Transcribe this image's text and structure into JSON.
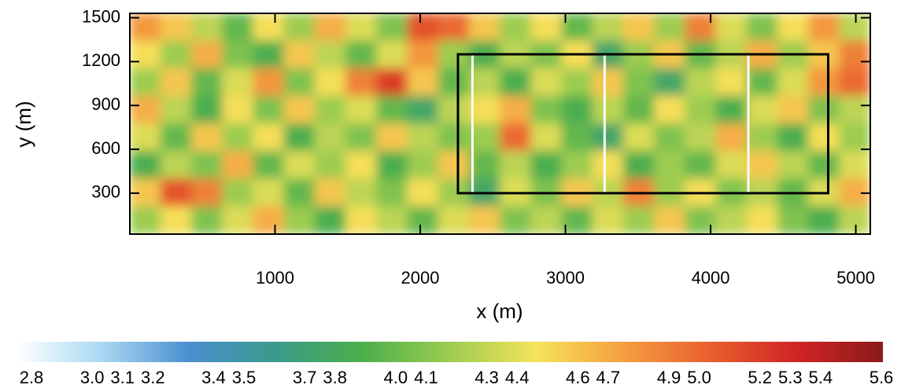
{
  "chart_data": {
    "type": "heatmap",
    "xlabel": "x (m)",
    "ylabel": "y (m)",
    "xlim": [
      0,
      5100
    ],
    "ylim": [
      20,
      1530
    ],
    "xticks": [
      1000,
      2000,
      3000,
      4000,
      5000
    ],
    "yticks": [
      300,
      600,
      900,
      1200,
      1500
    ],
    "z": [
      [
        4.8,
        4.6,
        4.3,
        4.0,
        4.5,
        4.2,
        4.7,
        4.4,
        4.1,
        5.1,
        5.0,
        4.6,
        4.2,
        4.5,
        4.0,
        4.3,
        4.6,
        4.2,
        4.9,
        4.4,
        4.1,
        4.5,
        4.8,
        4.3
      ],
      [
        4.5,
        4.2,
        4.7,
        4.1,
        3.9,
        4.6,
        4.3,
        4.0,
        4.4,
        4.8,
        4.2,
        3.9,
        4.3,
        4.1,
        4.5,
        3.8,
        4.2,
        4.6,
        4.0,
        4.3,
        4.7,
        4.2,
        4.6,
        4.9
      ],
      [
        4.2,
        4.6,
        4.0,
        4.4,
        4.8,
        4.1,
        4.5,
        4.9,
        5.2,
        4.6,
        4.0,
        4.3,
        3.9,
        4.4,
        4.2,
        4.6,
        4.1,
        3.8,
        4.3,
        4.5,
        4.0,
        4.4,
        4.8,
        5.0
      ],
      [
        4.7,
        4.3,
        3.9,
        4.5,
        4.1,
        4.6,
        4.2,
        4.4,
        4.0,
        3.8,
        4.3,
        4.5,
        4.7,
        4.1,
        3.9,
        4.3,
        4.0,
        4.5,
        4.2,
        3.9,
        4.4,
        4.6,
        4.1,
        4.3
      ],
      [
        4.4,
        4.0,
        4.6,
        4.2,
        4.5,
        3.9,
        4.3,
        4.1,
        4.6,
        4.3,
        4.1,
        4.2,
        5.0,
        4.4,
        4.0,
        3.8,
        4.4,
        4.1,
        4.3,
        4.7,
        4.2,
        3.9,
        4.5,
        4.2
      ],
      [
        3.9,
        4.3,
        4.1,
        4.7,
        4.0,
        4.4,
        4.2,
        4.5,
        3.9,
        4.2,
        4.6,
        4.0,
        4.3,
        3.9,
        4.2,
        4.5,
        3.9,
        4.2,
        4.0,
        4.4,
        4.6,
        4.3,
        4.0,
        4.4
      ],
      [
        4.6,
        5.1,
        4.9,
        4.2,
        4.4,
        4.0,
        4.6,
        4.3,
        4.1,
        4.5,
        4.2,
        3.8,
        4.4,
        4.1,
        4.6,
        4.3,
        4.9,
        4.2,
        4.5,
        4.1,
        4.3,
        4.0,
        4.4,
        4.7
      ],
      [
        4.2,
        4.5,
        4.1,
        4.4,
        4.7,
        4.2,
        3.9,
        4.5,
        4.3,
        4.0,
        4.4,
        4.6,
        4.1,
        4.3,
        4.0,
        4.4,
        4.2,
        4.6,
        4.1,
        4.3,
        4.5,
        4.1,
        3.9,
        4.3
      ]
    ],
    "box": {
      "x": [
        2260,
        4810
      ],
      "y": [
        300,
        1250
      ],
      "color": "#000000"
    },
    "vlines": {
      "x": [
        2360,
        3270,
        4260
      ],
      "y": [
        300,
        1250
      ],
      "color": "#ffffff"
    },
    "colorbar": {
      "lim": [
        2.8,
        5.6
      ],
      "colors": [
        "#ffffff",
        "#a9d8f2",
        "#4a8fd0",
        "#3a9a8a",
        "#4caf4c",
        "#9ccc50",
        "#f5e35a",
        "#f5a040",
        "#e8602e",
        "#d02424",
        "#8c1a1a"
      ],
      "ticks": [
        {
          "value": 2.8,
          "label": "2.8"
        },
        {
          "value": 3.0,
          "label": "3.0"
        },
        {
          "value": 3.1,
          "label": "3.1"
        },
        {
          "value": 3.2,
          "label": "3.2"
        },
        {
          "value": 3.4,
          "label": "3.4"
        },
        {
          "value": 3.5,
          "label": "3.5"
        },
        {
          "value": 3.7,
          "label": "3.7"
        },
        {
          "value": 3.8,
          "label": "3.8"
        },
        {
          "value": 4.0,
          "label": "4.0"
        },
        {
          "value": 4.1,
          "label": "4.1"
        },
        {
          "value": 4.3,
          "label": "4.3"
        },
        {
          "value": 4.4,
          "label": "4.4"
        },
        {
          "value": 4.6,
          "label": "4.6"
        },
        {
          "value": 4.7,
          "label": "4.7"
        },
        {
          "value": 4.9,
          "label": "4.9"
        },
        {
          "value": 5.0,
          "label": "5.0"
        },
        {
          "value": 5.2,
          "label": "5.2"
        },
        {
          "value": 5.3,
          "label": "5.3"
        },
        {
          "value": 5.4,
          "label": "5.4"
        },
        {
          "value": 5.6,
          "label": "5.6"
        }
      ]
    }
  }
}
